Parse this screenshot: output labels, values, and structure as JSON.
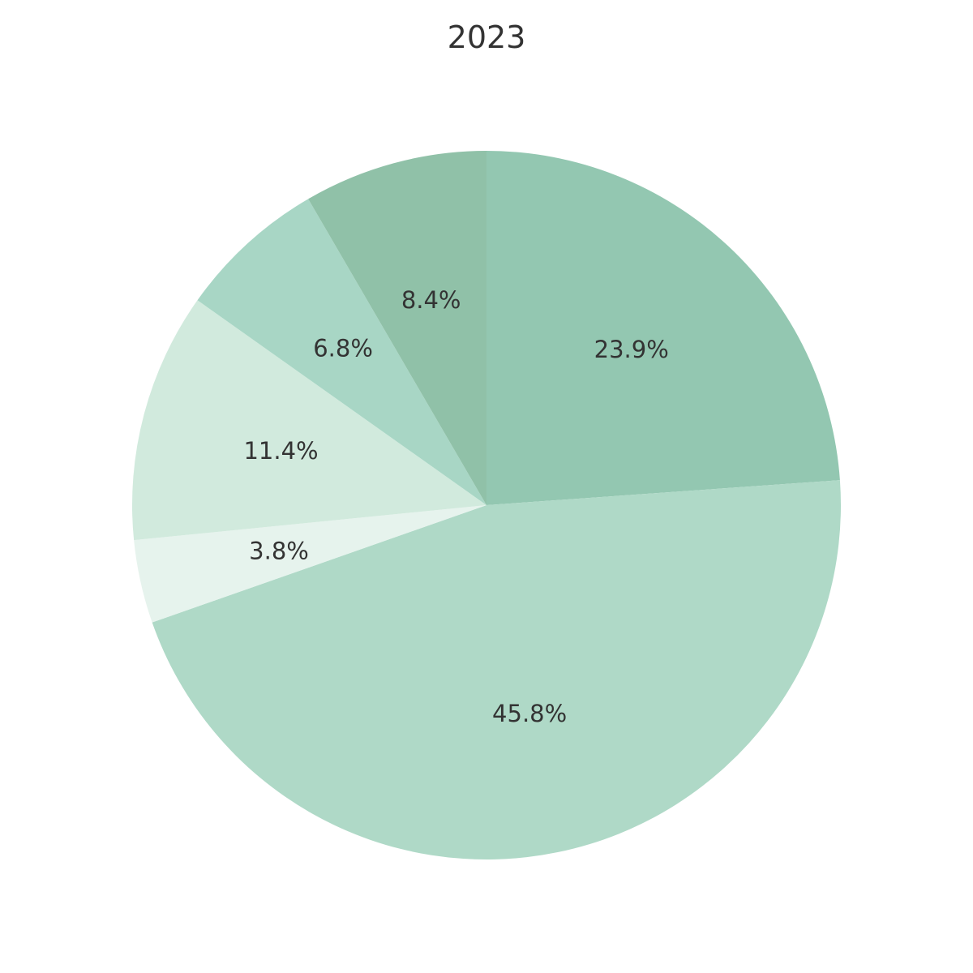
{
  "chart_data": {
    "type": "pie",
    "title": "2023",
    "start_angle_deg": 90,
    "direction": "clockwise",
    "slices": [
      {
        "label": "23.9%",
        "value": 23.9,
        "color": "#93c7b1"
      },
      {
        "label": "45.8%",
        "value": 45.8,
        "color": "#afd9c7"
      },
      {
        "label": "3.8%",
        "value": 3.8,
        "color": "#e6f3ed"
      },
      {
        "label": "11.4%",
        "value": 11.4,
        "color": "#d1eadd"
      },
      {
        "label": "6.8%",
        "value": 6.8,
        "color": "#a8d6c5"
      },
      {
        "label": "8.4%",
        "value": 8.4,
        "color": "#90c1a8"
      }
    ]
  }
}
